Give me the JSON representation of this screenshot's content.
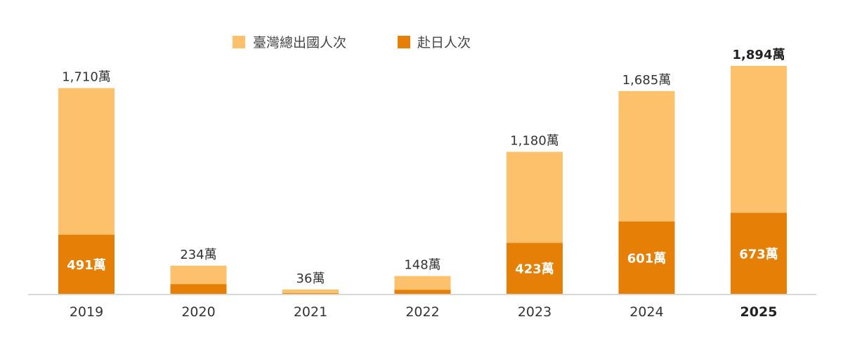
{
  "chart_data": {
    "type": "bar",
    "stacked": false,
    "overlap": true,
    "categories": [
      "2019",
      "2020",
      "2021",
      "2022",
      "2023",
      "2024",
      "2025"
    ],
    "highlight_category": "2025",
    "series": [
      {
        "name": "臺灣總出國人次",
        "color": "#FDC16B",
        "values": [
          1710,
          234,
          36,
          148,
          1180,
          1685,
          1894
        ],
        "labels": [
          "1,710萬",
          "234萬",
          "36萬",
          "148萬",
          "1,180萬",
          "1,685萬",
          "1,894萬"
        ]
      },
      {
        "name": "赴日人次",
        "color": "#E57F05",
        "values": [
          491,
          80,
          5,
          33,
          423,
          601,
          673
        ],
        "labels": [
          "491萬",
          "",
          "",
          "",
          "423萬",
          "601萬",
          "673萬"
        ]
      }
    ],
    "ylim": [
      0,
      1894
    ],
    "grid": false,
    "legend_position": "top-center",
    "title": "",
    "xlabel": "",
    "ylabel": ""
  }
}
